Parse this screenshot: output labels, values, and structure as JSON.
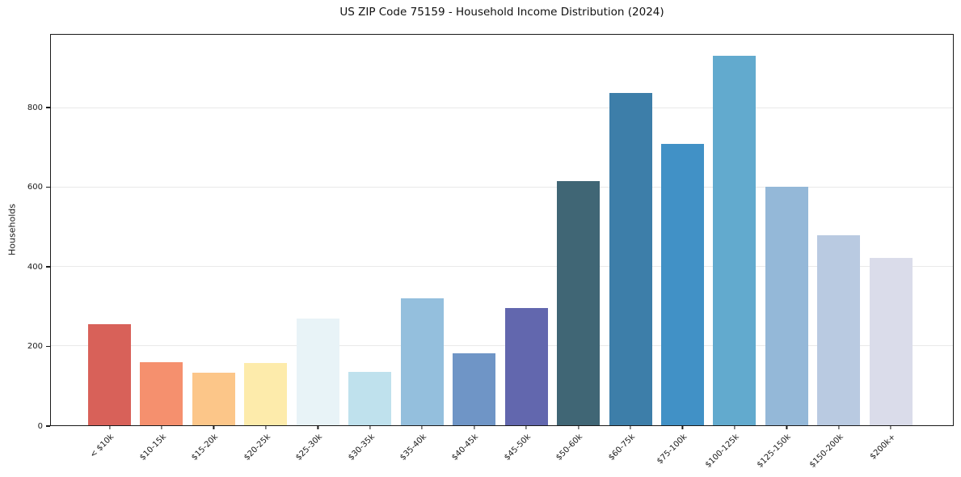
{
  "figure": {
    "background": "#ffffff",
    "text_color": "#1a1a1a",
    "spine_color": "#1a1a1a",
    "grid_color": "#e9e9e9"
  },
  "chart_data": {
    "type": "bar",
    "title": "US ZIP Code 75159 - Household Income Distribution (2024)",
    "xlabel": "",
    "ylabel": "Households",
    "categories": [
      "< $10k",
      "$10-15k",
      "$15-20k",
      "$20-25k",
      "$25-30k",
      "$30-35k",
      "$35-40k",
      "$40-45k",
      "$45-50k",
      "$50-60k",
      "$60-75k",
      "$75-100k",
      "$100-125k",
      "$125-150k",
      "$150-200k",
      "$200k+"
    ],
    "values": [
      255,
      160,
      133,
      158,
      270,
      134,
      321,
      181,
      295,
      615,
      838,
      710,
      933,
      602,
      480,
      423
    ],
    "bar_colors": [
      "#d65b52",
      "#f58b68",
      "#fcc484",
      "#fdeaa8",
      "#e7f2f7",
      "#bce0ec",
      "#90bcdc",
      "#6991c4",
      "#5c61ab",
      "#38606f",
      "#3579a5",
      "#398dc4",
      "#5ca7cc",
      "#90b5d6",
      "#b6c8e0",
      "#d8dbe9"
    ],
    "yticks": [
      0,
      200,
      400,
      600,
      800
    ],
    "ylim": [
      0,
      985
    ],
    "grid": "horizontal",
    "legend": "none"
  }
}
